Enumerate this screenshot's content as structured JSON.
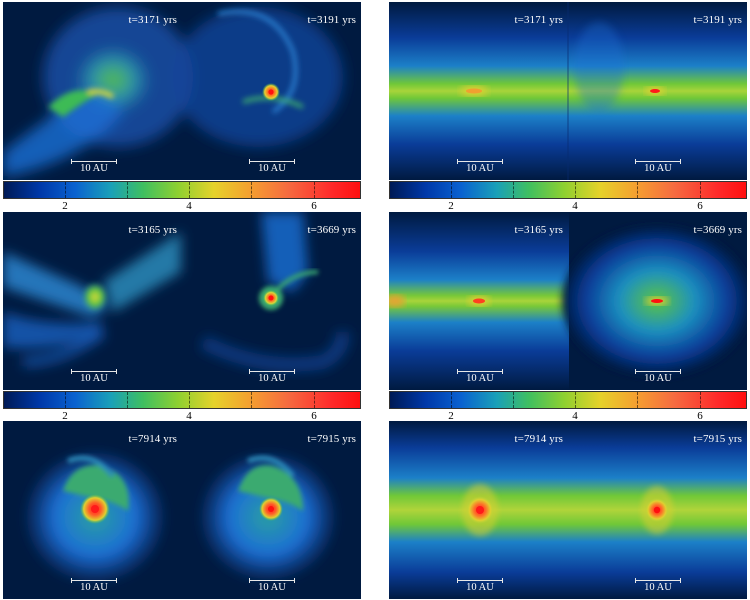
{
  "figure": {
    "scalebar_label": "10 AU",
    "colors": {
      "background": "#001a40",
      "disk_blue": "#1c6fd6",
      "disk_green": "#4fc34a",
      "disk_yellow": "#d8d83a",
      "core_red": "#ff1a1a"
    },
    "colorbar": {
      "tick_labels": [
        "2",
        "4",
        "6"
      ],
      "colormap_stops": [
        "#001a55",
        "#0038a8",
        "#0a62d0",
        "#1aa0b8",
        "#3fbf60",
        "#8fd030",
        "#e6d22a",
        "#f5a030",
        "#f56a40",
        "#ff2a2a",
        "#ff1010"
      ]
    },
    "rows": [
      {
        "left_time": "t=3171 yrs",
        "right_time": "t=3191 yrs"
      },
      {
        "left_time": "t=3165 yrs",
        "right_time": "t=3669 yrs"
      },
      {
        "left_time": "t=7914 yrs",
        "right_time": "t=7915 yrs"
      }
    ]
  }
}
